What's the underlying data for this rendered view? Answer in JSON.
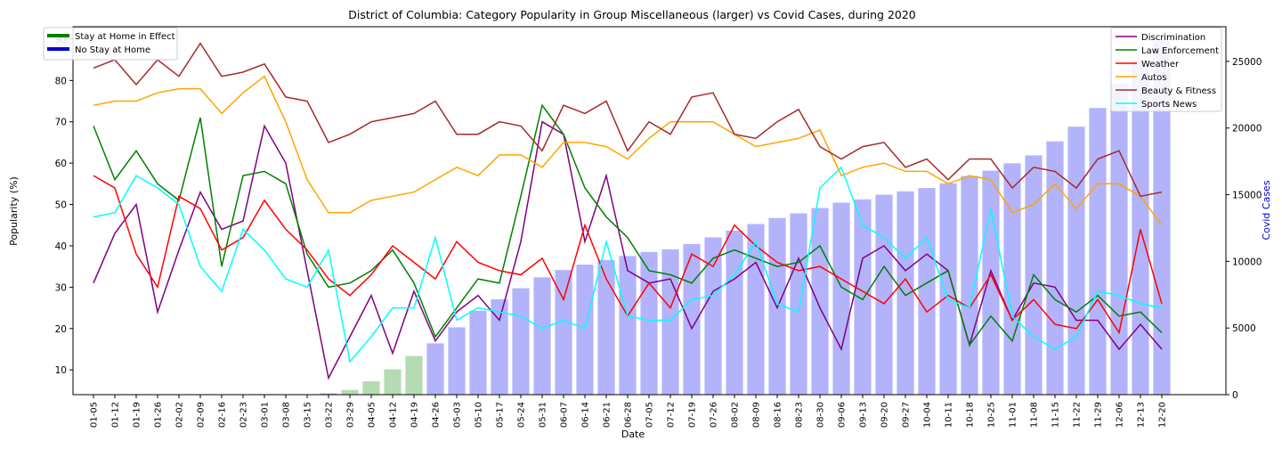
{
  "chart_data": {
    "type": "line",
    "title": "District of Columbia: Category Popularity in Group Miscellaneous (larger) vs Covid Cases, during 2020",
    "xlabel": "Date",
    "ylabel": "Popularity (%)",
    "y2label": "Covid Cases",
    "ylim": [
      4,
      93
    ],
    "y2lim": [
      0,
      27600
    ],
    "yticks": [
      10,
      20,
      30,
      40,
      50,
      60,
      70,
      80,
      90
    ],
    "y2ticks": [
      0,
      5000,
      10000,
      15000,
      20000,
      25000
    ],
    "categories": [
      "01-05",
      "01-12",
      "01-19",
      "01-26",
      "02-02",
      "02-09",
      "02-16",
      "02-23",
      "03-01",
      "03-08",
      "03-15",
      "03-22",
      "03-29",
      "04-05",
      "04-12",
      "04-19",
      "04-26",
      "05-03",
      "05-10",
      "05-17",
      "05-24",
      "05-31",
      "06-07",
      "06-14",
      "06-21",
      "06-28",
      "07-05",
      "07-12",
      "07-19",
      "07-26",
      "08-02",
      "08-09",
      "08-16",
      "08-23",
      "08-30",
      "09-06",
      "09-13",
      "09-20",
      "09-27",
      "10-04",
      "10-11",
      "10-18",
      "10-25",
      "11-01",
      "11-08",
      "11-15",
      "11-22",
      "11-29",
      "12-06",
      "12-13",
      "12-20"
    ],
    "covid_cases": [
      0,
      0,
      0,
      0,
      0,
      0,
      0,
      0,
      0,
      0,
      30,
      100,
      350,
      1000,
      1900,
      2900,
      3850,
      5050,
      6300,
      7150,
      7980,
      8800,
      9350,
      9750,
      10100,
      10400,
      10700,
      10900,
      11300,
      11800,
      12300,
      12800,
      13250,
      13600,
      14000,
      14400,
      14650,
      15000,
      15250,
      15500,
      15850,
      16400,
      16800,
      17350,
      17950,
      19000,
      20100,
      21500,
      23300,
      25100,
      26500
    ],
    "covid_colors": {
      "stay_home": "#b5dbb2",
      "no_stay_home": "#b3b3fb"
    },
    "stay_home_weeks": [
      "03-29",
      "04-05",
      "04-12",
      "04-19"
    ],
    "background_legend": [
      {
        "name": "Stay at Home in Effect",
        "color": "#008000"
      },
      {
        "name": "No Stay at Home",
        "color": "#0000cc"
      }
    ],
    "series": [
      {
        "name": "Discrimination",
        "color": "#800080",
        "values": [
          31,
          43,
          50,
          24,
          39,
          53,
          44,
          46,
          69,
          60,
          34,
          8,
          18,
          28,
          14,
          29,
          17,
          24,
          28,
          22,
          41,
          70,
          67,
          41,
          57,
          34,
          31,
          32,
          20,
          29,
          32,
          36,
          25,
          37,
          25,
          15,
          37,
          40,
          34,
          38,
          34,
          16,
          34,
          22,
          31,
          30,
          22,
          22,
          15,
          21,
          15
        ]
      },
      {
        "name": "Law Enforcement",
        "color": "#008000",
        "values": [
          69,
          56,
          63,
          55,
          51,
          71,
          35,
          57,
          58,
          55,
          38,
          30,
          31,
          34,
          39,
          31,
          18,
          25,
          32,
          31,
          52,
          74,
          67,
          54,
          47,
          42,
          34,
          33,
          31,
          37,
          39,
          37,
          35,
          36,
          40,
          30,
          27,
          35,
          28,
          31,
          34,
          16,
          23,
          17,
          33,
          27,
          24,
          28,
          23,
          24,
          19
        ]
      },
      {
        "name": "Weather",
        "color": "#ff0000",
        "values": [
          57,
          54,
          38,
          30,
          52,
          49,
          39,
          42,
          51,
          44,
          39,
          32,
          28,
          33,
          40,
          36,
          32,
          41,
          36,
          34,
          33,
          37,
          27,
          45,
          32,
          23,
          31,
          25,
          38,
          35,
          45,
          40,
          36,
          34,
          35,
          32,
          29,
          26,
          32,
          24,
          28,
          25,
          33,
          22,
          27,
          21,
          20,
          27,
          19,
          44,
          26
        ]
      },
      {
        "name": "Autos",
        "color": "#ffa500",
        "values": [
          74,
          75,
          75,
          77,
          78,
          78,
          72,
          77,
          81,
          70,
          56,
          48,
          48,
          51,
          52,
          53,
          56,
          59,
          57,
          62,
          62,
          59,
          65,
          65,
          64,
          61,
          66,
          70,
          70,
          70,
          67,
          64,
          65,
          66,
          68,
          57,
          59,
          60,
          58,
          58,
          55,
          57,
          56,
          48,
          50,
          55,
          49,
          55,
          55,
          52,
          45
        ]
      },
      {
        "name": "Beauty & Fitness",
        "color": "#a52a2a",
        "values": [
          83,
          85,
          79,
          85,
          81,
          89,
          81,
          82,
          84,
          76,
          75,
          65,
          67,
          70,
          71,
          72,
          75,
          67,
          67,
          70,
          69,
          63,
          74,
          72,
          75,
          63,
          70,
          67,
          76,
          77,
          67,
          66,
          70,
          73,
          64,
          61,
          64,
          65,
          59,
          61,
          56,
          61,
          61,
          54,
          59,
          58,
          54,
          61,
          63,
          52,
          53
        ]
      },
      {
        "name": "Sports News",
        "color": "#00ffff",
        "values": [
          47,
          48,
          57,
          54,
          50,
          35,
          29,
          44,
          39,
          32,
          30,
          39,
          12,
          18,
          25,
          25,
          42,
          22,
          25,
          24,
          23,
          20,
          22,
          20,
          41,
          23,
          22,
          22,
          27,
          28,
          33,
          41,
          26,
          24,
          54,
          59,
          45,
          42,
          37,
          42,
          27,
          25,
          49,
          23,
          18,
          15,
          18,
          29,
          28,
          26,
          25
        ]
      }
    ]
  }
}
